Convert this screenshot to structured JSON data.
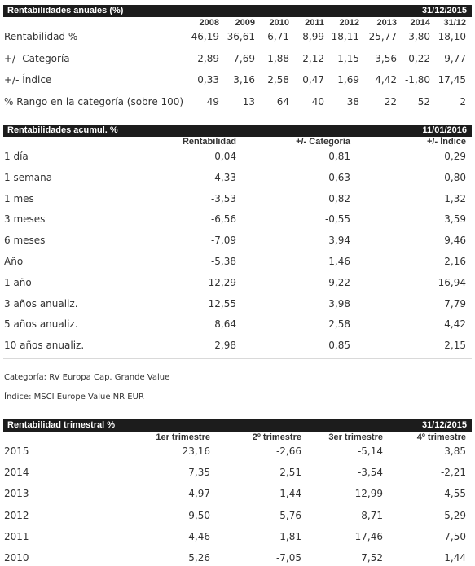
{
  "annual": {
    "title": "Rentabilidades anuales (%)",
    "date": "31/12/2015",
    "columns": [
      "2008",
      "2009",
      "2010",
      "2011",
      "2012",
      "2013",
      "2014",
      "31/12"
    ],
    "rows": [
      {
        "label": "Rentabilidad %",
        "values": [
          "-46,19",
          "36,61",
          "6,71",
          "-8,99",
          "18,11",
          "25,77",
          "3,80",
          "18,10"
        ]
      },
      {
        "label": "+/- Categoría",
        "values": [
          "-2,89",
          "7,69",
          "-1,88",
          "2,12",
          "1,15",
          "3,56",
          "0,22",
          "9,77"
        ]
      },
      {
        "label": "+/- Índice",
        "values": [
          "0,33",
          "3,16",
          "2,58",
          "0,47",
          "1,69",
          "4,42",
          "-1,80",
          "17,45"
        ]
      },
      {
        "label": "% Rango en la categoría (sobre 100)",
        "values": [
          "49",
          "13",
          "64",
          "40",
          "38",
          "22",
          "52",
          "2"
        ]
      }
    ]
  },
  "cumulative": {
    "title": "Rentabilidades acumul. %",
    "date": "11/01/2016",
    "columns": [
      "Rentabilidad",
      "+/- Categoría",
      "+/- Índice"
    ],
    "rows": [
      {
        "label": "1 día",
        "values": [
          "0,04",
          "0,81",
          "0,29"
        ]
      },
      {
        "label": "1 semana",
        "values": [
          "-4,33",
          "0,63",
          "0,80"
        ]
      },
      {
        "label": "1 mes",
        "values": [
          "-3,53",
          "0,82",
          "1,32"
        ]
      },
      {
        "label": "3 meses",
        "values": [
          "-6,56",
          "-0,55",
          "3,59"
        ]
      },
      {
        "label": "6 meses",
        "values": [
          "-7,09",
          "3,94",
          "9,46"
        ]
      },
      {
        "label": "Año",
        "values": [
          "-5,38",
          "1,46",
          "2,16"
        ]
      },
      {
        "label": "1 año",
        "values": [
          "12,29",
          "9,22",
          "16,94"
        ]
      },
      {
        "label": "3 años anualiz.",
        "values": [
          "12,55",
          "3,98",
          "7,79"
        ]
      },
      {
        "label": "5 años anualiz.",
        "values": [
          "8,64",
          "2,58",
          "4,42"
        ]
      },
      {
        "label": "10 años anualiz.",
        "values": [
          "2,98",
          "0,85",
          "2,15"
        ]
      }
    ]
  },
  "notes": {
    "category": "Categoría: RV Europa Cap. Grande Value",
    "index": "Índice: MSCI Europe Value NR EUR"
  },
  "quarterly": {
    "title": "Rentabilidad trimestral %",
    "date": "31/12/2015",
    "columns": [
      "1er trimestre",
      "2º trimestre",
      "3er trimestre",
      "4º trimestre"
    ],
    "rows": [
      {
        "label": "2015",
        "values": [
          "23,16",
          "-2,66",
          "-5,14",
          "3,85"
        ]
      },
      {
        "label": "2014",
        "values": [
          "7,35",
          "2,51",
          "-3,54",
          "-2,21"
        ]
      },
      {
        "label": "2013",
        "values": [
          "4,97",
          "1,44",
          "12,99",
          "4,55"
        ]
      },
      {
        "label": "2012",
        "values": [
          "9,50",
          "-5,76",
          "8,71",
          "5,29"
        ]
      },
      {
        "label": "2011",
        "values": [
          "4,46",
          "-1,81",
          "-17,46",
          "7,50"
        ]
      },
      {
        "label": "2010",
        "values": [
          "5,26",
          "-7,05",
          "7,52",
          "1,44"
        ]
      }
    ]
  }
}
